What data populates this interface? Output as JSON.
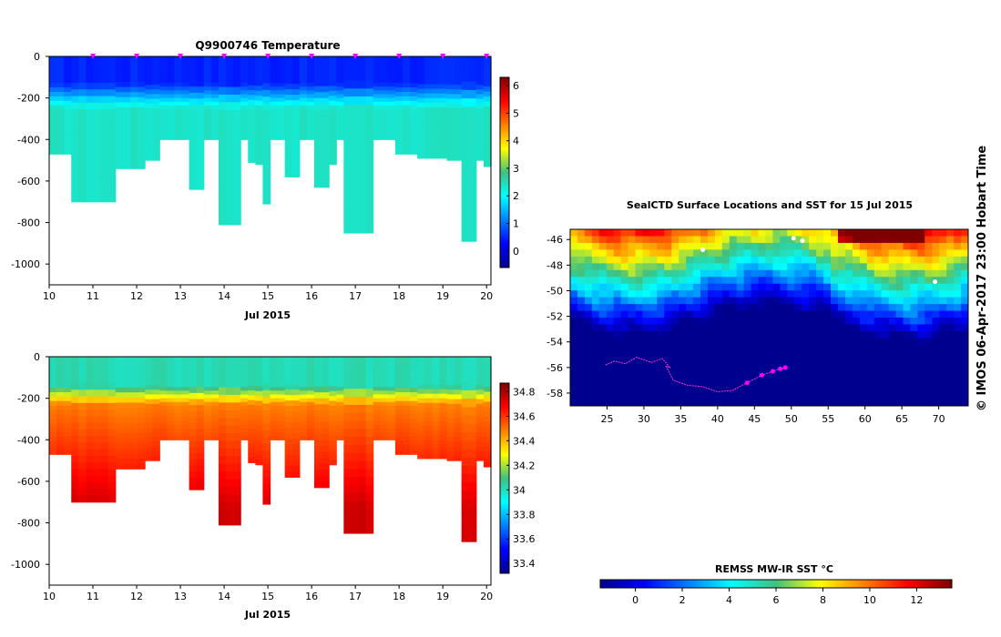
{
  "chart_data": [
    {
      "id": "temperature",
      "type": "heatmap",
      "title": "Q9900746  Temperature",
      "xlabel": "Jul 2015",
      "ylabel": "",
      "xlim": [
        10,
        20.1
      ],
      "ylim": [
        -1100,
        0
      ],
      "x_ticks": [
        "10",
        "11",
        "12",
        "13",
        "14",
        "15",
        "16",
        "17",
        "18",
        "19",
        "20"
      ],
      "y_ticks": [
        "0",
        "-200",
        "-400",
        "-600",
        "-800",
        "-1000"
      ],
      "colorbar": {
        "min": -0.6,
        "max": 6.3,
        "ticks": [
          "0",
          "1",
          "2",
          "3",
          "4",
          "5",
          "6"
        ]
      },
      "profile_markers_day": [
        11.0,
        12.0,
        13.0,
        14.0,
        15.0,
        16.0,
        17.0,
        18.0,
        19.0,
        20.0
      ]
    },
    {
      "id": "salinity",
      "type": "heatmap",
      "title": "",
      "xlabel": "Jul 2015",
      "ylabel": "",
      "xlim": [
        10,
        20.1
      ],
      "ylim": [
        -1100,
        0
      ],
      "x_ticks": [
        "10",
        "11",
        "12",
        "13",
        "14",
        "15",
        "16",
        "17",
        "18",
        "19",
        "20"
      ],
      "y_ticks": [
        "0",
        "-200",
        "-400",
        "-600",
        "-800",
        "-1000"
      ],
      "colorbar": {
        "min": 33.32,
        "max": 34.87,
        "ticks": [
          "33.4",
          "33.6",
          "33.8",
          "34",
          "34.2",
          "34.4",
          "34.6",
          "34.8"
        ]
      }
    },
    {
      "id": "sst_map",
      "type": "heatmap",
      "title": "SealCTD Surface Locations and SST for 15 Jul 2015",
      "xlabel": "",
      "ylabel": "",
      "xlim": [
        20,
        74
      ],
      "ylim": [
        -59,
        -45.2
      ],
      "x_ticks": [
        "25",
        "30",
        "35",
        "40",
        "45",
        "50",
        "55",
        "60",
        "65",
        "70"
      ],
      "y_ticks": [
        "-46",
        "-48",
        "-50",
        "-52",
        "-54",
        "-56",
        "-58"
      ],
      "colorbar": {
        "label": "REMSS MW-IR SST °C",
        "min": -1.5,
        "max": 13.5,
        "ticks": [
          "0",
          "2",
          "4",
          "6",
          "8",
          "10",
          "12"
        ]
      },
      "track_lon": [
        24.8,
        26,
        27.5,
        29,
        31,
        32.5,
        33.5,
        33,
        34,
        36,
        38,
        40,
        42,
        44,
        46,
        47.5,
        48.5,
        49.2
      ],
      "track_lat": [
        -55.8,
        -55.5,
        -55.7,
        -55.2,
        -55.6,
        -55.3,
        -56.0,
        -55.9,
        -57.0,
        -57.4,
        -57.5,
        -57.9,
        -57.8,
        -57.2,
        -56.6,
        -56.3,
        -56.1,
        -56.0
      ]
    }
  ],
  "credit": "© IMOS 06-Apr-2017 23:00 Hobart Time",
  "colors": {
    "track": "#ff33cc",
    "marker": "#ff00ff"
  }
}
